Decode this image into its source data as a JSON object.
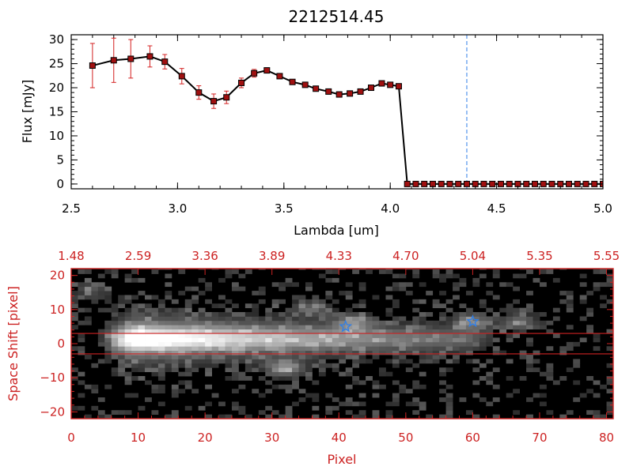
{
  "chart_data": [
    {
      "type": "line",
      "title": "2212514.45",
      "xlabel": "Lambda [um]",
      "ylabel": "Flux [mJy]",
      "xlim": [
        2.5,
        5.0
      ],
      "ylim": [
        -1,
        31
      ],
      "x_ticks": [
        "2.5",
        "3.0",
        "3.5",
        "4.0",
        "4.5",
        "5.0"
      ],
      "y_ticks": [
        "0",
        "5",
        "10",
        "15",
        "20",
        "25",
        "30"
      ],
      "reference_line_x": 4.36,
      "series": [
        {
          "name": "flux",
          "x": [
            2.6,
            2.7,
            2.78,
            2.87,
            2.94,
            3.02,
            3.1,
            3.17,
            3.23,
            3.3,
            3.36,
            3.42,
            3.48,
            3.54,
            3.6,
            3.65,
            3.71,
            3.76,
            3.81,
            3.86,
            3.91,
            3.96,
            4.0,
            4.04,
            4.08,
            4.12,
            4.16,
            4.2,
            4.24,
            4.28,
            4.32,
            4.36,
            4.4,
            4.44,
            4.48,
            4.52,
            4.56,
            4.6,
            4.64,
            4.68,
            4.72,
            4.76,
            4.8,
            4.84,
            4.88,
            4.92,
            4.96,
            5.0
          ],
          "y": [
            24.6,
            25.7,
            26.0,
            26.5,
            25.4,
            22.4,
            19.0,
            17.2,
            18.0,
            21.0,
            23.0,
            23.6,
            22.4,
            21.2,
            20.6,
            19.8,
            19.2,
            18.6,
            18.8,
            19.2,
            20.0,
            20.9,
            20.6,
            20.3,
            0,
            0,
            0,
            0,
            0,
            0,
            0,
            0,
            0,
            0,
            0,
            0,
            0,
            0,
            0,
            0,
            0,
            0,
            0,
            0,
            0,
            0,
            0,
            0
          ],
          "error": [
            4.6,
            4.6,
            4.0,
            2.2,
            1.5,
            1.6,
            1.4,
            1.5,
            1.3,
            1.0,
            0.8,
            0.5,
            0.5,
            0.5,
            0.5,
            0.5,
            0.5,
            0.5,
            0.5,
            0.5,
            0.5,
            0.5,
            0.5,
            0.5,
            0,
            0,
            0,
            0,
            0,
            0,
            0,
            0,
            0,
            0,
            0,
            0,
            0,
            0,
            0,
            0,
            0,
            0,
            0,
            0,
            0,
            0,
            0,
            0
          ]
        }
      ]
    },
    {
      "type": "heatmap",
      "xlabel": "Pixel",
      "ylabel": "Space Shift [pixel]",
      "xlim": [
        0,
        81
      ],
      "ylim": [
        -22,
        22
      ],
      "x_ticks": [
        "0",
        "10",
        "20",
        "30",
        "40",
        "50",
        "60",
        "70",
        "80"
      ],
      "y_ticks": [
        "−20",
        "−10",
        "0",
        "10",
        "20"
      ],
      "top_ticks": [
        "1.48",
        "2.59",
        "3.36",
        "3.89",
        "4.33",
        "4.70",
        "5.04",
        "5.35",
        "5.55"
      ],
      "aperture_lines_y": [
        3,
        -3
      ],
      "markers": [
        {
          "symbol": "star",
          "x": 41,
          "y": 5
        },
        {
          "symbol": "star",
          "x": 60,
          "y": 6.5
        }
      ],
      "emission": {
        "spine": {
          "x_start": 6,
          "x_end": 60,
          "y": 1.5,
          "peak_x": 10
        },
        "blobs": [
          {
            "x": 32,
            "y": -7,
            "strength": 0.4
          },
          {
            "x": 42,
            "y": 6,
            "strength": 0.35
          },
          {
            "x": 60,
            "y": 6.5,
            "strength": 0.3
          },
          {
            "x": 67,
            "y": 6.5,
            "strength": 0.28
          },
          {
            "x": 36,
            "y": 10.5,
            "strength": 0.22
          },
          {
            "x": 3,
            "y": 16,
            "strength": 0.2
          }
        ]
      }
    }
  ],
  "colors": {
    "axis_red": "#cc2222",
    "error_red": "#d42020",
    "marker_red": "#a01010",
    "line": "#000000",
    "dashed_blue": "#2f7fe8",
    "star_blue": "#2f7fe8",
    "panel_bg": "#000000"
  }
}
